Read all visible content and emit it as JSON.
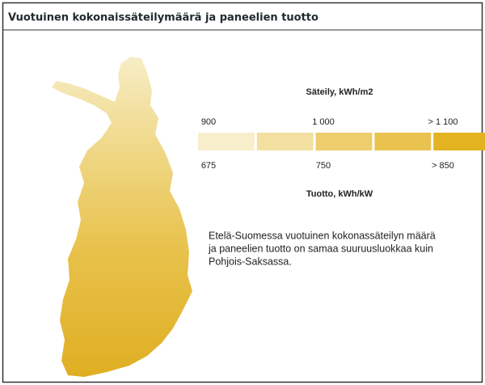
{
  "header": {
    "title": "Vuotuinen kokonaissäteilymäärä ja paneelien tuotto"
  },
  "legend": {
    "top_title": "Säteily, kWh/m2",
    "top_labels": [
      "900",
      "1 000",
      "> 1 100"
    ],
    "bottom_labels": [
      "675",
      "750",
      "> 850"
    ],
    "bottom_title": "Tuotto, kWh/kW",
    "colors": [
      "#f8eecb",
      "#f3df9f",
      "#edcd6c",
      "#e9c24f",
      "#e3b322"
    ]
  },
  "note": {
    "lines": [
      "Etelä-Suomessa vuotuinen kokonassäteilyn määrä",
      "ja paneelien tuotto on samaa suuruusluokkaa kuin",
      "Pohjois-Saksassa."
    ]
  }
}
